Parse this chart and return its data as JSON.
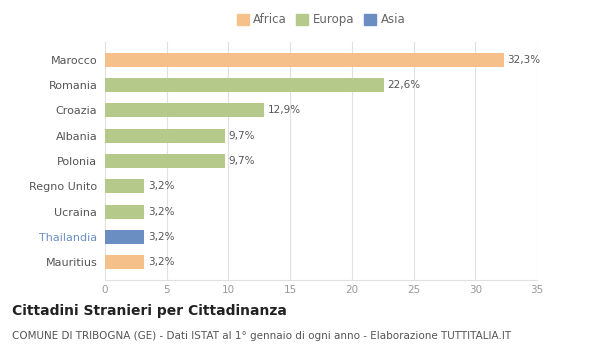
{
  "categories": [
    "Mauritius",
    "Thailandia",
    "Ucraina",
    "Regno Unito",
    "Polonia",
    "Albania",
    "Croazia",
    "Romania",
    "Marocco"
  ],
  "values": [
    3.2,
    3.2,
    3.2,
    3.2,
    9.7,
    9.7,
    12.9,
    22.6,
    32.3
  ],
  "labels": [
    "3,2%",
    "3,2%",
    "3,2%",
    "3,2%",
    "9,7%",
    "9,7%",
    "12,9%",
    "22,6%",
    "32,3%"
  ],
  "colors": [
    "#f5c08a",
    "#6b8ec2",
    "#b5c98a",
    "#b5c98a",
    "#b5c98a",
    "#b5c98a",
    "#b5c98a",
    "#b5c98a",
    "#f5c08a"
  ],
  "legend_labels": [
    "Africa",
    "Europa",
    "Asia"
  ],
  "legend_colors": [
    "#f5c08a",
    "#b5c98a",
    "#6b8ec2"
  ],
  "title": "Cittadini Stranieri per Cittadinanza",
  "subtitle": "COMUNE DI TRIBOGNA (GE) - Dati ISTAT al 1° gennaio di ogni anno - Elaborazione TUTTITALIA.IT",
  "xlim": [
    0,
    35
  ],
  "xticks": [
    0,
    5,
    10,
    15,
    20,
    25,
    30,
    35
  ],
  "background_color": "#ffffff",
  "grid_color": "#e0e0e0",
  "title_fontsize": 10,
  "subtitle_fontsize": 7.5,
  "label_fontsize": 7.5,
  "tick_fontsize": 7.5,
  "ytick_fontsize": 8
}
